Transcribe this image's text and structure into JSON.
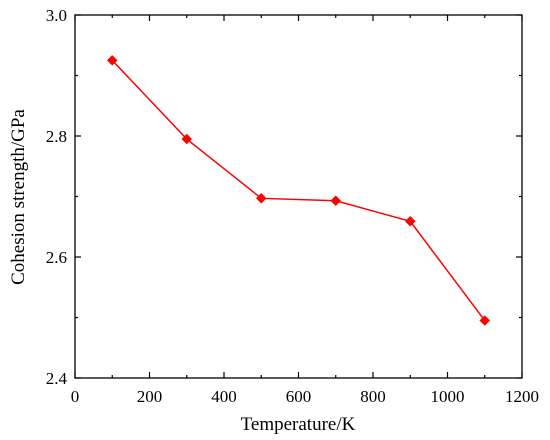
{
  "chart_data": {
    "type": "line",
    "title": "",
    "xlabel": "Temperature/K",
    "ylabel": "Cohesion strength/GPa",
    "xlim": [
      0,
      1200
    ],
    "ylim": [
      2.4,
      3.0
    ],
    "x_ticks": [
      "0",
      "200",
      "400",
      "600",
      "800",
      "1000",
      "1200"
    ],
    "y_ticks": [
      "2.4",
      "2.6",
      "2.8",
      "3.0"
    ],
    "grid": false,
    "legend": "none",
    "series": [
      {
        "color": "#ff0000",
        "marker": "diamond",
        "x": [
          100,
          300,
          500,
          700,
          900,
          1100
        ],
        "y": [
          2.925,
          2.795,
          2.697,
          2.693,
          2.659,
          2.495
        ]
      }
    ]
  }
}
